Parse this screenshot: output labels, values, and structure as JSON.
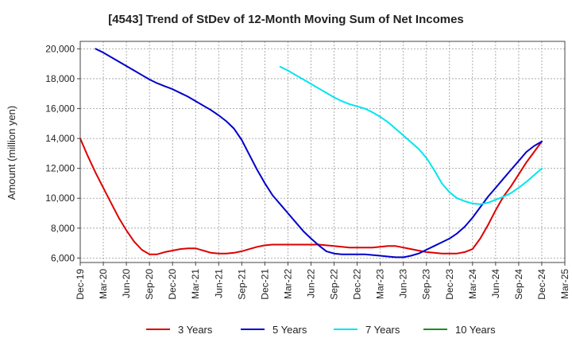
{
  "chart_data": {
    "type": "line",
    "title": "[4543]  Trend of StDev of 12-Month Moving Sum of Net Incomes",
    "xlabel": "",
    "ylabel": "Amount (million yen)",
    "ylim": [
      5700,
      20500
    ],
    "yticks": [
      6000,
      8000,
      10000,
      12000,
      14000,
      16000,
      18000,
      20000
    ],
    "ytick_labels": [
      "6,000",
      "8,000",
      "10,000",
      "12,000",
      "14,000",
      "16,000",
      "18,000",
      "20,000"
    ],
    "xtick_labels": [
      "Dec-19",
      "Mar-20",
      "Jun-20",
      "Sep-20",
      "Dec-20",
      "Mar-21",
      "Jun-21",
      "Sep-21",
      "Dec-21",
      "Mar-22",
      "Jun-22",
      "Sep-22",
      "Dec-22",
      "Mar-23",
      "Jun-23",
      "Sep-23",
      "Dec-23",
      "Mar-24",
      "Jun-24",
      "Sep-24",
      "Dec-24",
      "Mar-25"
    ],
    "grid": true,
    "legend_position": "bottom",
    "series": [
      {
        "name": "3 Years",
        "color": "#dd0000",
        "x": [
          "2019-12",
          "2020-01",
          "2020-02",
          "2020-03",
          "2020-04",
          "2020-05",
          "2020-06",
          "2020-07",
          "2020-08",
          "2020-09",
          "2020-10",
          "2020-11",
          "2020-12",
          "2021-01",
          "2021-02",
          "2021-03",
          "2021-04",
          "2021-05",
          "2021-06",
          "2021-07",
          "2021-08",
          "2021-09",
          "2021-10",
          "2021-11",
          "2021-12",
          "2022-01",
          "2022-02",
          "2022-03",
          "2022-04",
          "2022-05",
          "2022-06",
          "2022-07",
          "2022-08",
          "2022-09",
          "2022-10",
          "2022-11",
          "2022-12",
          "2023-01",
          "2023-02",
          "2023-03",
          "2023-04",
          "2023-05",
          "2023-06",
          "2023-07",
          "2023-08",
          "2023-09",
          "2023-10",
          "2023-11",
          "2023-12",
          "2024-01",
          "2024-02",
          "2024-03",
          "2024-04",
          "2024-05",
          "2024-06",
          "2024-07",
          "2024-08",
          "2024-09",
          "2024-10",
          "2024-11",
          "2024-12"
        ],
        "values": [
          14000,
          12800,
          11700,
          10700,
          9700,
          8700,
          7850,
          7100,
          6550,
          6250,
          6250,
          6400,
          6500,
          6600,
          6650,
          6650,
          6500,
          6350,
          6300,
          6300,
          6350,
          6450,
          6600,
          6750,
          6850,
          6900,
          6900,
          6900,
          6900,
          6900,
          6900,
          6900,
          6850,
          6800,
          6750,
          6700,
          6700,
          6700,
          6700,
          6750,
          6800,
          6800,
          6700,
          6600,
          6500,
          6400,
          6350,
          6300,
          6300,
          6300,
          6400,
          6600,
          7300,
          8200,
          9200,
          10100,
          10800,
          11600,
          12400,
          13100,
          13800
        ]
      },
      {
        "name": "5 Years",
        "color": "#0000cc",
        "x": [
          "2020-02",
          "2020-03",
          "2020-04",
          "2020-05",
          "2020-06",
          "2020-07",
          "2020-08",
          "2020-09",
          "2020-10",
          "2020-11",
          "2020-12",
          "2021-01",
          "2021-02",
          "2021-03",
          "2021-04",
          "2021-05",
          "2021-06",
          "2021-07",
          "2021-08",
          "2021-09",
          "2021-10",
          "2021-11",
          "2021-12",
          "2022-01",
          "2022-02",
          "2022-03",
          "2022-04",
          "2022-05",
          "2022-06",
          "2022-07",
          "2022-08",
          "2022-09",
          "2022-10",
          "2022-11",
          "2022-12",
          "2023-01",
          "2023-02",
          "2023-03",
          "2023-04",
          "2023-05",
          "2023-06",
          "2023-07",
          "2023-08",
          "2023-09",
          "2023-10",
          "2023-11",
          "2023-12",
          "2024-01",
          "2024-02",
          "2024-03",
          "2024-04",
          "2024-05",
          "2024-06",
          "2024-07",
          "2024-08",
          "2024-09",
          "2024-10",
          "2024-11",
          "2024-12"
        ],
        "values": [
          20000,
          19750,
          19450,
          19150,
          18850,
          18550,
          18250,
          17950,
          17700,
          17500,
          17300,
          17050,
          16800,
          16500,
          16200,
          15900,
          15550,
          15150,
          14650,
          13900,
          12900,
          11900,
          11000,
          10200,
          9600,
          9000,
          8400,
          7800,
          7300,
          6850,
          6450,
          6300,
          6250,
          6250,
          6250,
          6250,
          6200,
          6150,
          6100,
          6050,
          6050,
          6150,
          6300,
          6550,
          6800,
          7050,
          7300,
          7650,
          8100,
          8700,
          9400,
          10100,
          10700,
          11300,
          11900,
          12500,
          13100,
          13500,
          13800
        ]
      },
      {
        "name": "7 Years",
        "color": "#00e5ee",
        "x": [
          "2022-02",
          "2022-03",
          "2022-04",
          "2022-05",
          "2022-06",
          "2022-07",
          "2022-08",
          "2022-09",
          "2022-10",
          "2022-11",
          "2022-12",
          "2023-01",
          "2023-02",
          "2023-03",
          "2023-04",
          "2023-05",
          "2023-06",
          "2023-07",
          "2023-08",
          "2023-09",
          "2023-10",
          "2023-11",
          "2023-12",
          "2024-01",
          "2024-02",
          "2024-03",
          "2024-04",
          "2024-05",
          "2024-06",
          "2024-07",
          "2024-08",
          "2024-09",
          "2024-10",
          "2024-11",
          "2024-12"
        ],
        "values": [
          18800,
          18550,
          18250,
          17950,
          17650,
          17350,
          17050,
          16750,
          16500,
          16300,
          16150,
          16000,
          15750,
          15450,
          15100,
          14650,
          14200,
          13750,
          13300,
          12700,
          11900,
          11000,
          10400,
          10000,
          9800,
          9650,
          9600,
          9700,
          9900,
          10100,
          10350,
          10700,
          11100,
          11550,
          12000
        ]
      },
      {
        "name": "10 Years",
        "color": "#228b22",
        "x": [],
        "values": []
      }
    ]
  }
}
